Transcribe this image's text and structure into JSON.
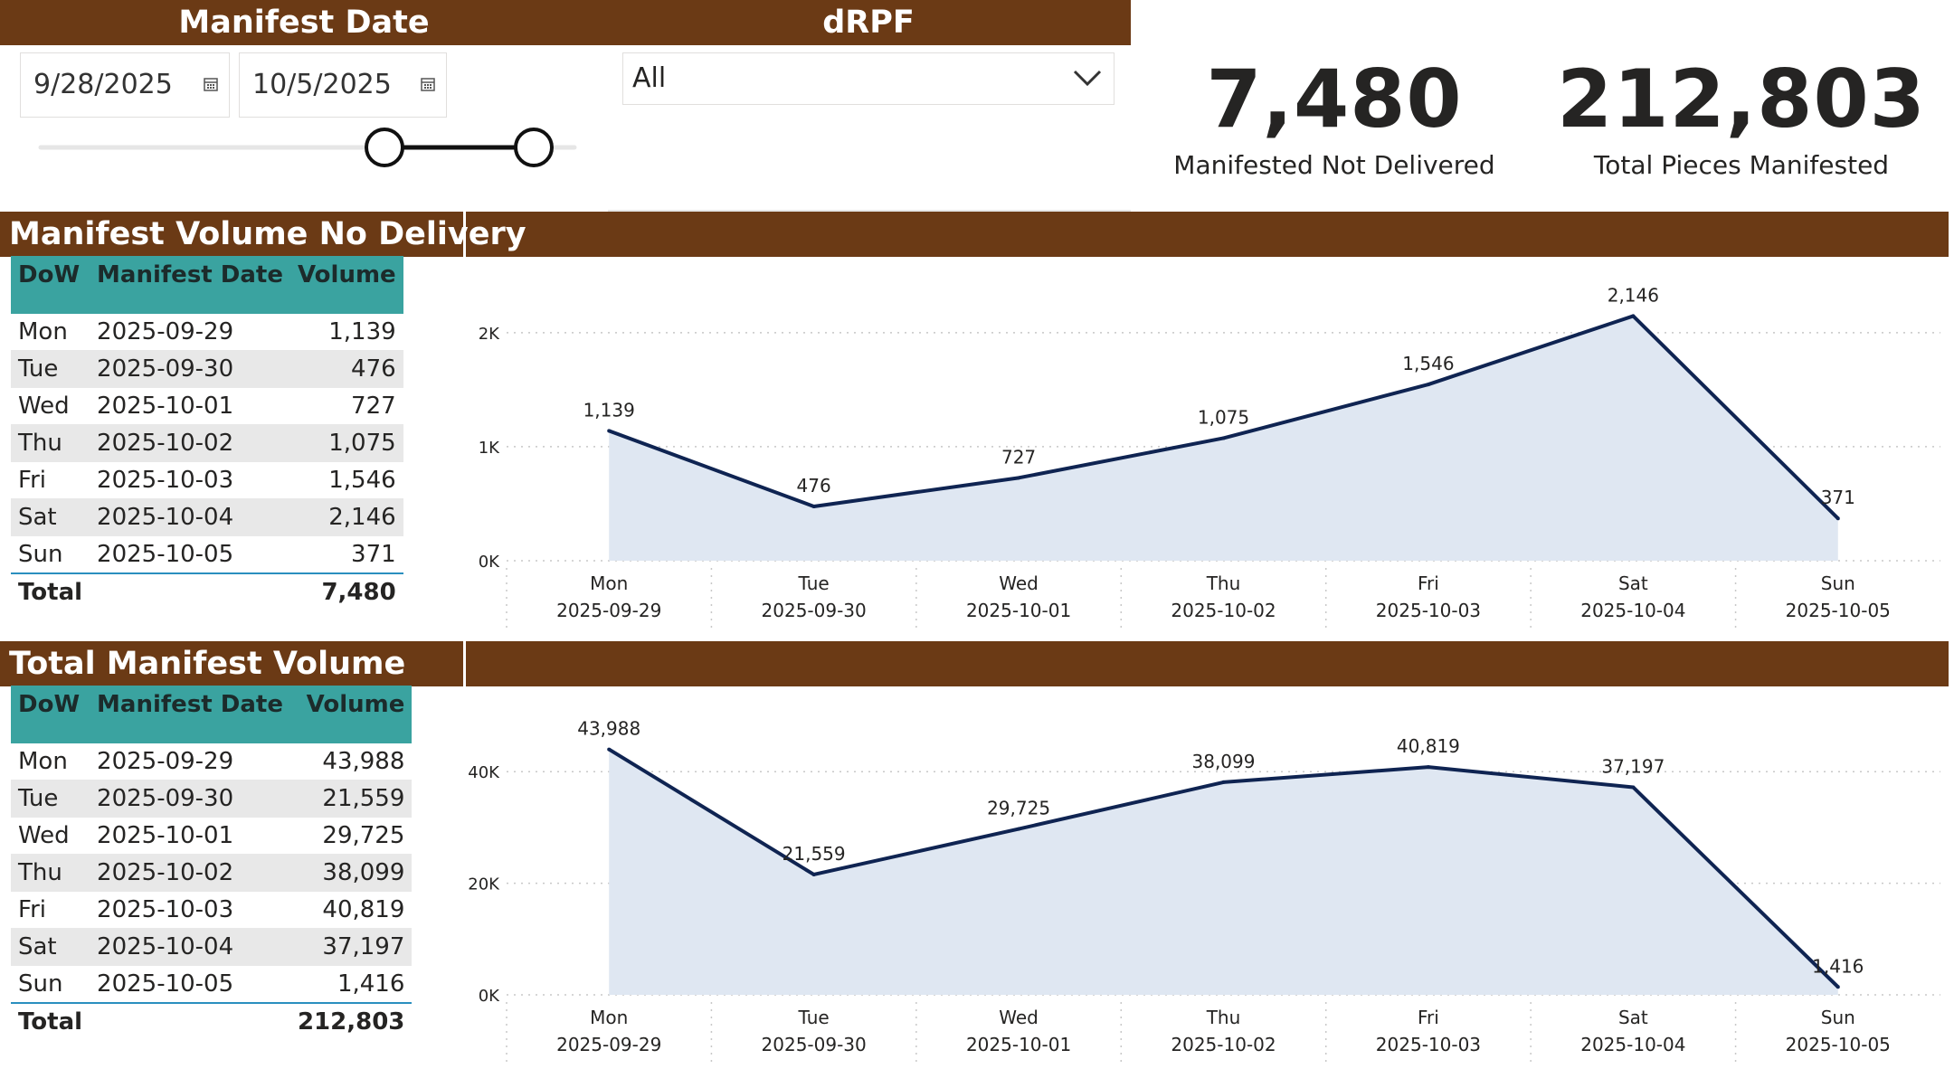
{
  "filters": {
    "manifest_date_title": "Manifest Date",
    "start_date": "9/28/2025",
    "end_date": "10/5/2025",
    "drpf_title": "dRPF",
    "drpf_value": "All"
  },
  "kpis": [
    {
      "value": "7,480",
      "label": "Manifested Not Delivered"
    },
    {
      "value": "212,803",
      "label": "Total Pieces Manifested"
    }
  ],
  "section1": {
    "title": "Manifest Volume No Delivery",
    "table": {
      "headers": [
        "DoW",
        "Manifest Date",
        "Volume"
      ],
      "rows": [
        [
          "Mon",
          "2025-09-29",
          "1,139"
        ],
        [
          "Tue",
          "2025-09-30",
          "476"
        ],
        [
          "Wed",
          "2025-10-01",
          "727"
        ],
        [
          "Thu",
          "2025-10-02",
          "1,075"
        ],
        [
          "Fri",
          "2025-10-03",
          "1,546"
        ],
        [
          "Sat",
          "2025-10-04",
          "2,146"
        ],
        [
          "Sun",
          "2025-10-05",
          "371"
        ]
      ],
      "total_label": "Total",
      "total_value": "7,480"
    }
  },
  "section2": {
    "title": "Total Manifest Volume",
    "table": {
      "headers": [
        "DoW",
        "Manifest Date",
        "Volume"
      ],
      "rows": [
        [
          "Mon",
          "2025-09-29",
          "43,988"
        ],
        [
          "Tue",
          "2025-09-30",
          "21,559"
        ],
        [
          "Wed",
          "2025-10-01",
          "29,725"
        ],
        [
          "Thu",
          "2025-10-02",
          "38,099"
        ],
        [
          "Fri",
          "2025-10-03",
          "40,819"
        ],
        [
          "Sat",
          "2025-10-04",
          "37,197"
        ],
        [
          "Sun",
          "2025-10-05",
          "1,416"
        ]
      ],
      "total_label": "Total",
      "total_value": "212,803"
    }
  },
  "chart_data": [
    {
      "type": "area",
      "title": "",
      "categories": [
        "Mon 2025-09-29",
        "Tue 2025-09-30",
        "Wed 2025-10-01",
        "Thu 2025-10-02",
        "Fri 2025-10-03",
        "Sat 2025-10-04",
        "Sun 2025-10-05"
      ],
      "category_lines": [
        [
          "Mon",
          "2025-09-29"
        ],
        [
          "Tue",
          "2025-09-30"
        ],
        [
          "Wed",
          "2025-10-01"
        ],
        [
          "Thu",
          "2025-10-02"
        ],
        [
          "Fri",
          "2025-10-03"
        ],
        [
          "Sat",
          "2025-10-04"
        ],
        [
          "Sun",
          "2025-10-05"
        ]
      ],
      "values": [
        1139,
        476,
        727,
        1075,
        1546,
        2146,
        371
      ],
      "value_labels": [
        "1,139",
        "476",
        "727",
        "1,075",
        "1,546",
        "2,146",
        "371"
      ],
      "yticks": [
        0,
        1000,
        2000
      ],
      "ytick_labels": [
        "0K",
        "1K",
        "2K"
      ],
      "ylim": [
        0,
        2300
      ],
      "grid": true,
      "line_color": "#0f2452",
      "fill_color": "#dfe7f2"
    },
    {
      "type": "area",
      "title": "",
      "categories": [
        "Mon 2025-09-29",
        "Tue 2025-09-30",
        "Wed 2025-10-01",
        "Thu 2025-10-02",
        "Fri 2025-10-03",
        "Sat 2025-10-04",
        "Sun 2025-10-05"
      ],
      "category_lines": [
        [
          "Mon",
          "2025-09-29"
        ],
        [
          "Tue",
          "2025-09-30"
        ],
        [
          "Wed",
          "2025-10-01"
        ],
        [
          "Thu",
          "2025-10-02"
        ],
        [
          "Fri",
          "2025-10-03"
        ],
        [
          "Sat",
          "2025-10-04"
        ],
        [
          "Sun",
          "2025-10-05"
        ]
      ],
      "values": [
        43988,
        21559,
        29725,
        38099,
        40819,
        37197,
        1416
      ],
      "value_labels": [
        "43,988",
        "21,559",
        "29,725",
        "38,099",
        "40,819",
        "37,197",
        "1,416"
      ],
      "yticks": [
        0,
        20000,
        40000
      ],
      "ytick_labels": [
        "0K",
        "20K",
        "40K"
      ],
      "ylim": [
        0,
        47000
      ],
      "grid": true,
      "line_color": "#0f2452",
      "fill_color": "#dfe7f2"
    }
  ],
  "colors": {
    "header_brown": "#6b3a15",
    "teal_header": "#3aa3a0"
  }
}
